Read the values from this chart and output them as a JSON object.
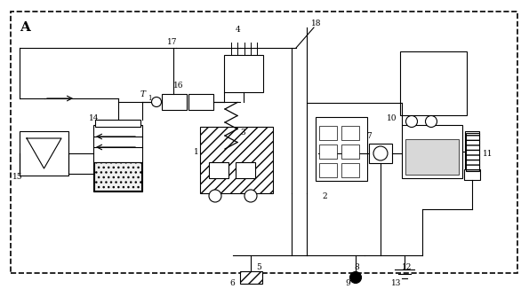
{
  "fig_width": 5.95,
  "fig_height": 3.26,
  "dpi": 100,
  "bg_color": "#ffffff",
  "line_color": "#000000"
}
